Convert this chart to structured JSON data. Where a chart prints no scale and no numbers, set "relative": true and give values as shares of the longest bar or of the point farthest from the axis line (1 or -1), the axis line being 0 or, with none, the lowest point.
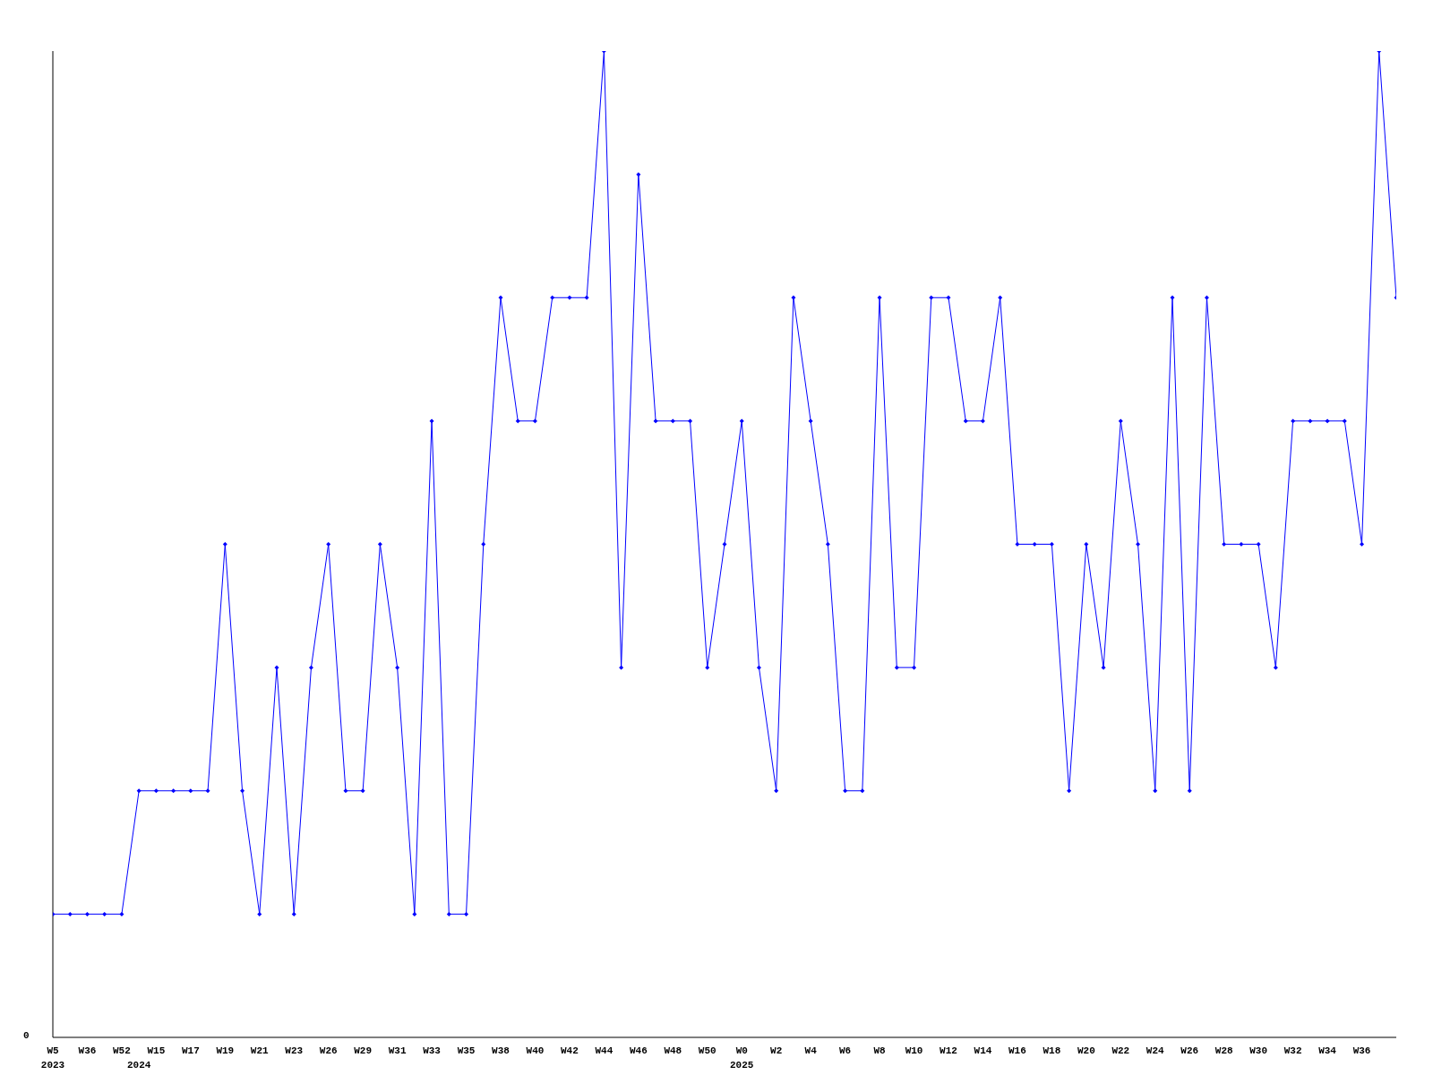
{
  "chart_data": {
    "type": "line",
    "relative": true,
    "color": "#0000ff",
    "marker": "diamond",
    "grid": false,
    "legend": false,
    "categories": [
      "W5\n2023",
      null,
      "W36",
      null,
      "W52",
      "\n2024",
      "W15",
      null,
      "W17",
      null,
      "W19",
      null,
      "W21",
      null,
      "W23",
      null,
      "W26",
      null,
      "W29",
      null,
      "W31",
      null,
      "W33",
      null,
      "W35",
      null,
      "W38",
      null,
      "W40",
      null,
      "W42",
      null,
      "W44",
      null,
      "W46",
      null,
      "W48",
      null,
      "W50",
      null,
      "W0\n2025",
      null,
      "W2",
      null,
      "W4",
      null,
      "W6",
      null,
      "W8",
      null,
      "W10",
      null,
      "W12",
      null,
      "W14",
      null,
      "W16",
      null,
      "W18",
      null,
      "W20",
      null,
      "W22",
      null,
      "W24",
      null,
      "W26",
      null,
      "W28",
      null,
      "W30",
      null,
      "W32",
      null,
      "W34",
      null,
      "W36",
      null,
      null
    ],
    "values": [
      0.125,
      0.125,
      0.125,
      0.125,
      0.125,
      0.25,
      0.25,
      0.25,
      0.25,
      0.25,
      0.5,
      0.25,
      0.125,
      0.375,
      0.125,
      0.375,
      0.5,
      0.25,
      0.25,
      0.5,
      0.375,
      0.125,
      0.625,
      0.125,
      0.125,
      0.5,
      0.75,
      0.625,
      0.625,
      0.75,
      0.75,
      0.75,
      1,
      0.375,
      0.875,
      0.625,
      0.625,
      0.625,
      0.375,
      0.5,
      0.625,
      0.375,
      0.25,
      0.75,
      0.625,
      0.5,
      0.25,
      0.25,
      0.75,
      0.375,
      0.375,
      0.75,
      0.75,
      0.625,
      0.625,
      0.75,
      0.5,
      0.5,
      0.5,
      0.25,
      0.5,
      0.375,
      0.625,
      0.5,
      0.25,
      0.75,
      0.25,
      0.75,
      0.5,
      0.5,
      0.5,
      0.375,
      0.625,
      0.625,
      0.625,
      0.625,
      0.5,
      1,
      0.75
    ],
    "annotations": [
      "0"
    ]
  }
}
